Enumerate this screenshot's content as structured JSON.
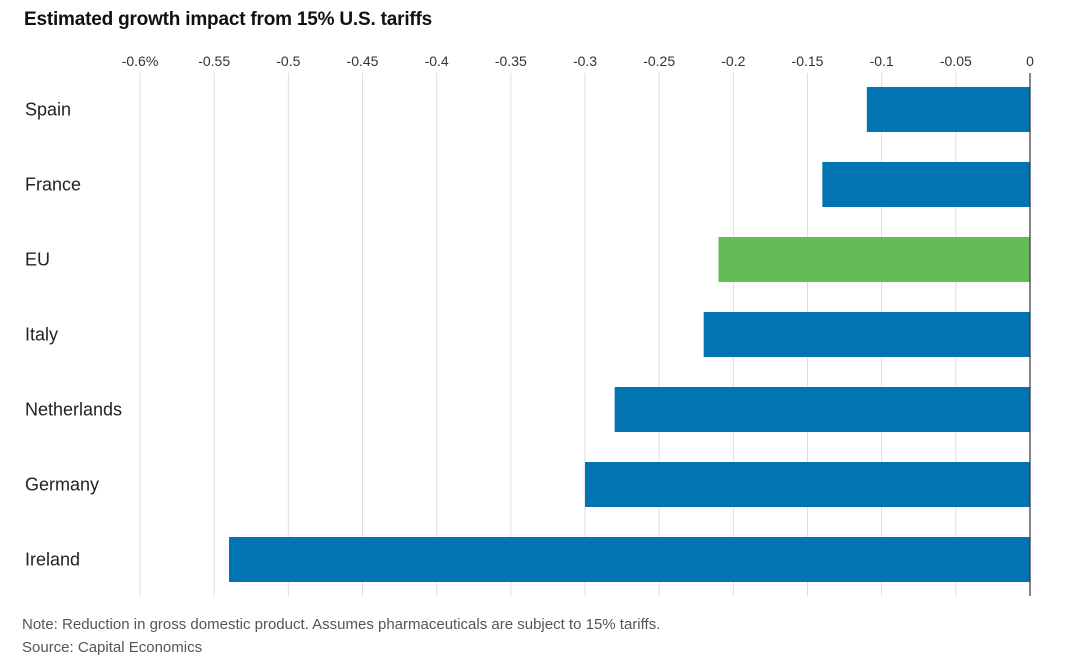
{
  "title": "Estimated growth impact from 15% U.S. tariffs",
  "note": "Note: Reduction in gross domestic product. Assumes pharmaceuticals are subject to 15% tariffs.",
  "source": "Source: Capital Economics",
  "colors": {
    "default_bar": "#0274b1",
    "highlight_bar": "#63bc55",
    "grid": "#dddddd",
    "axis": "#333333"
  },
  "chart_data": {
    "type": "bar",
    "orientation": "horizontal",
    "title": "Estimated growth impact from 15% U.S. tariffs",
    "xlim": [
      -0.6,
      0
    ],
    "x_ticks": [
      -0.6,
      -0.55,
      -0.5,
      -0.45,
      -0.4,
      -0.35,
      -0.3,
      -0.25,
      -0.2,
      -0.15,
      -0.1,
      -0.05,
      0
    ],
    "x_tick_labels": [
      "-0.6%",
      "-0.55",
      "-0.5",
      "-0.45",
      "-0.4",
      "-0.35",
      "-0.3",
      "-0.25",
      "-0.2",
      "-0.15",
      "-0.1",
      "-0.05",
      "0"
    ],
    "x_axis_position": "top",
    "grid": true,
    "categories": [
      "Spain",
      "France",
      "EU",
      "Italy",
      "Netherlands",
      "Germany",
      "Ireland"
    ],
    "values": [
      -0.11,
      -0.14,
      -0.21,
      -0.22,
      -0.28,
      -0.3,
      -0.54
    ],
    "highlight": [
      "EU"
    ]
  }
}
